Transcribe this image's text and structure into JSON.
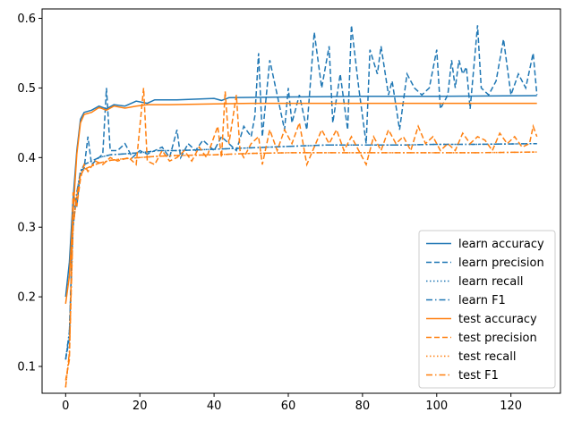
{
  "chart_data": {
    "type": "line",
    "title": "",
    "xlabel": "",
    "ylabel": "",
    "xlim": [
      -6.35,
      133.35
    ],
    "ylim": [
      0.0615,
      0.6135
    ],
    "xticks": [
      0,
      20,
      40,
      60,
      80,
      100,
      120
    ],
    "yticks": [
      0.1,
      0.2,
      0.3,
      0.4,
      0.5,
      0.6
    ],
    "xtick_labels": [
      "0",
      "20",
      "40",
      "60",
      "80",
      "100",
      "120"
    ],
    "ytick_labels": [
      "0.1",
      "0.2",
      "0.3",
      "0.4",
      "0.5",
      "0.6"
    ],
    "grid": false,
    "legend_position": "lower-right",
    "colors": {
      "learn": "#1f77b4",
      "test": "#ff7f0e"
    },
    "series": [
      {
        "name": "learn accuracy",
        "color": "#1f77b4",
        "linestyle": "solid",
        "points": [
          [
            0,
            0.2
          ],
          [
            1,
            0.25
          ],
          [
            2,
            0.34
          ],
          [
            3,
            0.41
          ],
          [
            4,
            0.455
          ],
          [
            5,
            0.465
          ],
          [
            7,
            0.468
          ],
          [
            9,
            0.474
          ],
          [
            11,
            0.47
          ],
          [
            13,
            0.476
          ],
          [
            16,
            0.474
          ],
          [
            19,
            0.481
          ],
          [
            22,
            0.478
          ],
          [
            24,
            0.483
          ],
          [
            30,
            0.483
          ],
          [
            40,
            0.485
          ],
          [
            42,
            0.482
          ],
          [
            44,
            0.486
          ],
          [
            60,
            0.487
          ],
          [
            80,
            0.488
          ],
          [
            100,
            0.488
          ],
          [
            127,
            0.489
          ]
        ]
      },
      {
        "name": "learn precision",
        "color": "#1f77b4",
        "linestyle": "dashed",
        "points": [
          [
            0,
            0.11
          ],
          [
            1,
            0.14
          ],
          [
            2,
            0.33
          ],
          [
            3,
            0.33
          ],
          [
            4,
            0.38
          ],
          [
            5,
            0.385
          ],
          [
            6,
            0.43
          ],
          [
            7,
            0.39
          ],
          [
            9,
            0.4
          ],
          [
            10,
            0.405
          ],
          [
            11,
            0.5
          ],
          [
            12,
            0.41
          ],
          [
            14,
            0.41
          ],
          [
            16,
            0.42
          ],
          [
            18,
            0.4
          ],
          [
            20,
            0.41
          ],
          [
            22,
            0.405
          ],
          [
            24,
            0.41
          ],
          [
            26,
            0.415
          ],
          [
            28,
            0.4
          ],
          [
            30,
            0.44
          ],
          [
            31,
            0.4
          ],
          [
            33,
            0.42
          ],
          [
            35,
            0.41
          ],
          [
            37,
            0.425
          ],
          [
            40,
            0.41
          ],
          [
            42,
            0.43
          ],
          [
            44,
            0.42
          ],
          [
            46,
            0.41
          ],
          [
            48,
            0.445
          ],
          [
            50,
            0.43
          ],
          [
            51,
            0.46
          ],
          [
            52,
            0.55
          ],
          [
            53,
            0.43
          ],
          [
            55,
            0.54
          ],
          [
            57,
            0.49
          ],
          [
            59,
            0.44
          ],
          [
            60,
            0.5
          ],
          [
            61,
            0.45
          ],
          [
            63,
            0.49
          ],
          [
            65,
            0.44
          ],
          [
            67,
            0.58
          ],
          [
            69,
            0.5
          ],
          [
            71,
            0.56
          ],
          [
            72,
            0.45
          ],
          [
            74,
            0.52
          ],
          [
            76,
            0.44
          ],
          [
            77,
            0.59
          ],
          [
            79,
            0.5
          ],
          [
            81,
            0.42
          ],
          [
            82,
            0.555
          ],
          [
            84,
            0.52
          ],
          [
            85,
            0.56
          ],
          [
            87,
            0.49
          ],
          [
            88,
            0.51
          ],
          [
            90,
            0.44
          ],
          [
            92,
            0.52
          ],
          [
            94,
            0.5
          ],
          [
            96,
            0.49
          ],
          [
            98,
            0.5
          ],
          [
            100,
            0.555
          ],
          [
            101,
            0.47
          ],
          [
            103,
            0.49
          ],
          [
            104,
            0.54
          ],
          [
            105,
            0.5
          ],
          [
            106,
            0.54
          ],
          [
            107,
            0.52
          ],
          [
            108,
            0.53
          ],
          [
            109,
            0.47
          ],
          [
            111,
            0.59
          ],
          [
            112,
            0.5
          ],
          [
            114,
            0.49
          ],
          [
            116,
            0.51
          ],
          [
            118,
            0.57
          ],
          [
            120,
            0.49
          ],
          [
            122,
            0.52
          ],
          [
            124,
            0.5
          ],
          [
            126,
            0.55
          ],
          [
            127,
            0.49
          ]
        ]
      },
      {
        "name": "learn recall",
        "color": "#1f77b4",
        "linestyle": "dotted",
        "points": [
          [
            0,
            0.11
          ],
          [
            1,
            0.15
          ],
          [
            2,
            0.3
          ],
          [
            3,
            0.35
          ],
          [
            4,
            0.38
          ],
          [
            5,
            0.39
          ],
          [
            7,
            0.395
          ],
          [
            9,
            0.4
          ],
          [
            12,
            0.404
          ],
          [
            15,
            0.405
          ],
          [
            20,
            0.407
          ],
          [
            25,
            0.41
          ],
          [
            30,
            0.41
          ],
          [
            40,
            0.412
          ],
          [
            50,
            0.414
          ],
          [
            60,
            0.416
          ],
          [
            70,
            0.418
          ],
          [
            80,
            0.418
          ],
          [
            90,
            0.418
          ],
          [
            100,
            0.419
          ],
          [
            110,
            0.419
          ],
          [
            127,
            0.42
          ]
        ]
      },
      {
        "name": "learn F1",
        "color": "#1f77b4",
        "linestyle": "dashdot",
        "points": [
          [
            0,
            0.11
          ],
          [
            1,
            0.15
          ],
          [
            2,
            0.3
          ],
          [
            3,
            0.35
          ],
          [
            4,
            0.38
          ],
          [
            5,
            0.39
          ],
          [
            7,
            0.395
          ],
          [
            9,
            0.4
          ],
          [
            12,
            0.404
          ],
          [
            15,
            0.405
          ],
          [
            20,
            0.407
          ],
          [
            25,
            0.41
          ],
          [
            30,
            0.41
          ],
          [
            40,
            0.412
          ],
          [
            50,
            0.414
          ],
          [
            60,
            0.416
          ],
          [
            70,
            0.418
          ],
          [
            80,
            0.418
          ],
          [
            90,
            0.418
          ],
          [
            100,
            0.419
          ],
          [
            110,
            0.419
          ],
          [
            127,
            0.42
          ]
        ]
      },
      {
        "name": "test accuracy",
        "color": "#ff7f0e",
        "linestyle": "solid",
        "points": [
          [
            0,
            0.19
          ],
          [
            1,
            0.23
          ],
          [
            2,
            0.32
          ],
          [
            3,
            0.405
          ],
          [
            4,
            0.45
          ],
          [
            5,
            0.462
          ],
          [
            7,
            0.465
          ],
          [
            9,
            0.472
          ],
          [
            11,
            0.468
          ],
          [
            13,
            0.474
          ],
          [
            16,
            0.471
          ],
          [
            19,
            0.474
          ],
          [
            22,
            0.476
          ],
          [
            28,
            0.476
          ],
          [
            40,
            0.477
          ],
          [
            50,
            0.478
          ],
          [
            60,
            0.478
          ],
          [
            80,
            0.478
          ],
          [
            100,
            0.478
          ],
          [
            127,
            0.478
          ]
        ]
      },
      {
        "name": "test precision",
        "color": "#ff7f0e",
        "linestyle": "dashed",
        "points": [
          [
            0,
            0.08
          ],
          [
            1,
            0.11
          ],
          [
            2,
            0.35
          ],
          [
            3,
            0.33
          ],
          [
            4,
            0.37
          ],
          [
            5,
            0.39
          ],
          [
            6,
            0.38
          ],
          [
            8,
            0.395
          ],
          [
            10,
            0.39
          ],
          [
            12,
            0.4
          ],
          [
            14,
            0.395
          ],
          [
            17,
            0.4
          ],
          [
            19,
            0.39
          ],
          [
            21,
            0.5
          ],
          [
            22,
            0.395
          ],
          [
            24,
            0.39
          ],
          [
            26,
            0.41
          ],
          [
            28,
            0.395
          ],
          [
            30,
            0.4
          ],
          [
            32,
            0.41
          ],
          [
            34,
            0.395
          ],
          [
            36,
            0.415
          ],
          [
            38,
            0.4
          ],
          [
            40,
            0.43
          ],
          [
            41,
            0.445
          ],
          [
            42,
            0.4
          ],
          [
            43,
            0.495
          ],
          [
            44,
            0.42
          ],
          [
            46,
            0.49
          ],
          [
            47,
            0.41
          ],
          [
            48,
            0.4
          ],
          [
            50,
            0.42
          ],
          [
            52,
            0.43
          ],
          [
            53,
            0.39
          ],
          [
            55,
            0.44
          ],
          [
            57,
            0.41
          ],
          [
            59,
            0.44
          ],
          [
            61,
            0.42
          ],
          [
            63,
            0.45
          ],
          [
            65,
            0.39
          ],
          [
            67,
            0.415
          ],
          [
            69,
            0.44
          ],
          [
            71,
            0.42
          ],
          [
            73,
            0.44
          ],
          [
            75,
            0.41
          ],
          [
            77,
            0.43
          ],
          [
            79,
            0.41
          ],
          [
            81,
            0.39
          ],
          [
            83,
            0.43
          ],
          [
            85,
            0.41
          ],
          [
            87,
            0.44
          ],
          [
            89,
            0.42
          ],
          [
            91,
            0.43
          ],
          [
            93,
            0.41
          ],
          [
            95,
            0.445
          ],
          [
            97,
            0.42
          ],
          [
            99,
            0.43
          ],
          [
            101,
            0.41
          ],
          [
            103,
            0.42
          ],
          [
            105,
            0.41
          ],
          [
            107,
            0.435
          ],
          [
            109,
            0.42
          ],
          [
            111,
            0.43
          ],
          [
            113,
            0.425
          ],
          [
            115,
            0.41
          ],
          [
            117,
            0.435
          ],
          [
            119,
            0.42
          ],
          [
            121,
            0.43
          ],
          [
            123,
            0.415
          ],
          [
            125,
            0.42
          ],
          [
            126,
            0.445
          ],
          [
            127,
            0.43
          ]
        ]
      },
      {
        "name": "test recall",
        "color": "#ff7f0e",
        "linestyle": "dotted",
        "points": [
          [
            0,
            0.07
          ],
          [
            1,
            0.12
          ],
          [
            2,
            0.3
          ],
          [
            3,
            0.345
          ],
          [
            4,
            0.375
          ],
          [
            5,
            0.383
          ],
          [
            7,
            0.388
          ],
          [
            9,
            0.392
          ],
          [
            12,
            0.396
          ],
          [
            15,
            0.398
          ],
          [
            20,
            0.4
          ],
          [
            25,
            0.402
          ],
          [
            30,
            0.403
          ],
          [
            40,
            0.404
          ],
          [
            50,
            0.406
          ],
          [
            60,
            0.407
          ],
          [
            70,
            0.407
          ],
          [
            80,
            0.407
          ],
          [
            90,
            0.407
          ],
          [
            100,
            0.407
          ],
          [
            110,
            0.407
          ],
          [
            127,
            0.408
          ]
        ]
      },
      {
        "name": "test F1",
        "color": "#ff7f0e",
        "linestyle": "dashdot",
        "points": [
          [
            0,
            0.07
          ],
          [
            1,
            0.12
          ],
          [
            2,
            0.3
          ],
          [
            3,
            0.345
          ],
          [
            4,
            0.375
          ],
          [
            5,
            0.383
          ],
          [
            7,
            0.388
          ],
          [
            9,
            0.392
          ],
          [
            12,
            0.396
          ],
          [
            15,
            0.398
          ],
          [
            20,
            0.4
          ],
          [
            25,
            0.402
          ],
          [
            30,
            0.403
          ],
          [
            40,
            0.404
          ],
          [
            50,
            0.406
          ],
          [
            60,
            0.407
          ],
          [
            70,
            0.407
          ],
          [
            80,
            0.407
          ],
          [
            90,
            0.407
          ],
          [
            100,
            0.407
          ],
          [
            110,
            0.407
          ],
          [
            127,
            0.408
          ]
        ]
      }
    ]
  }
}
